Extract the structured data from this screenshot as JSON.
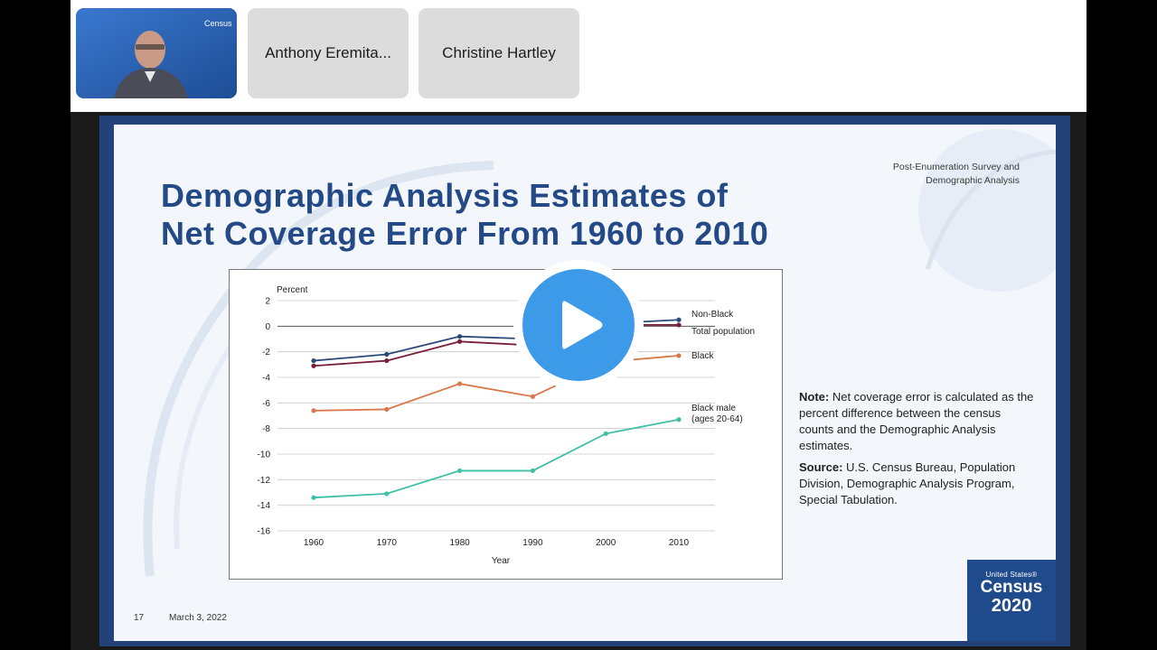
{
  "participants": [
    {
      "name": "",
      "badge": "Census"
    },
    {
      "name": "Anthony Eremita..."
    },
    {
      "name": "Christine Hartley"
    }
  ],
  "slide": {
    "title_line1": "Demographic Analysis Estimates of",
    "title_line2": "Net Coverage Error From 1960 to 2010",
    "section_label_line1": "Post-Enumeration Survey and",
    "section_label_line2": "Demographic Analysis",
    "note_label": "Note:",
    "note_text": "Net coverage error is calculated as the percent difference between the census counts and the Demographic Analysis estimates.",
    "source_label": "Source:",
    "source_text": "U.S. Census Bureau, Population Division, Demographic Analysis Program, Special Tabulation.",
    "page_number": "17",
    "date": "March 3, 2022",
    "logo_top": "United States®",
    "logo_census": "Census",
    "logo_year": "2020"
  },
  "chart_data": {
    "type": "line",
    "ylabel": "Percent",
    "xlabel": "Year",
    "x": [
      1960,
      1970,
      1980,
      1990,
      2000,
      2010
    ],
    "ylim": [
      -16,
      2
    ],
    "yticks": [
      2,
      0,
      -2,
      -4,
      -6,
      -8,
      -10,
      -12,
      -14,
      -16
    ],
    "grid": "horizontal",
    "series": [
      {
        "name": "Non-Black",
        "color": "#2b4a7a",
        "values": [
          -2.7,
          -2.2,
          -0.8,
          -1.0,
          0.2,
          0.5
        ]
      },
      {
        "name": "Total population",
        "color": "#7a1f3a",
        "values": [
          -3.1,
          -2.7,
          -1.2,
          -1.5,
          0.1,
          0.1
        ]
      },
      {
        "name": "Black",
        "color": "#d9774a",
        "values": [
          -6.6,
          -6.5,
          -4.5,
          -5.5,
          -2.8,
          -2.3
        ]
      },
      {
        "name": "Black male\n(ages 20-64)",
        "color": "#3ec0a6",
        "values": [
          -13.4,
          -13.1,
          -11.3,
          -11.3,
          -8.4,
          -7.3
        ]
      }
    ]
  },
  "colors": {
    "title": "#234a86",
    "slide_frame": "#24427a",
    "play": "#3d9ae8"
  },
  "icons": {
    "play": "play-icon"
  }
}
